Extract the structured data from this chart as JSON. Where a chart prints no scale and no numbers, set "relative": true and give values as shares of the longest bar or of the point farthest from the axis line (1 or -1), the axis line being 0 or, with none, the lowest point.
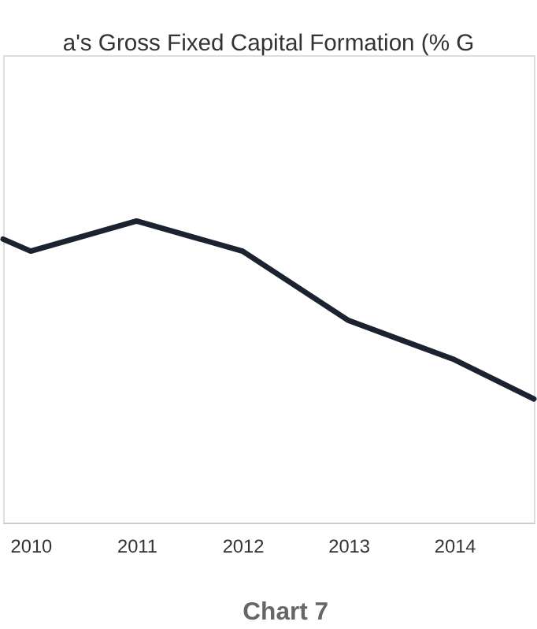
{
  "chart_data": {
    "type": "line",
    "title": "a's Gross Fixed Capital Formation (% G",
    "x": [
      2009.74,
      2010,
      2011,
      2012,
      2013,
      2014,
      2014.75
    ],
    "series": [
      {
        "color": "#1b2230",
        "values": [
          0.94,
          0.9,
          1,
          0.9,
          0.67,
          0.54,
          0.41
        ]
      }
    ],
    "relative": true,
    "xlim": [
      2009.74,
      2014.75
    ],
    "xticks": [
      2010,
      2011,
      2012,
      2013,
      2014
    ],
    "grid": false,
    "legend": false,
    "marker": "none",
    "line_style": "solid",
    "annotations": [
      "Chart 7"
    ]
  }
}
